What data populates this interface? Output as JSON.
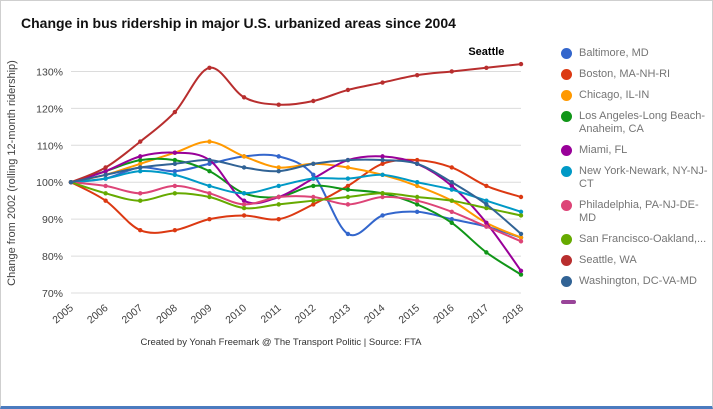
{
  "page": {
    "title": "Change in bus ridership in major U.S. urbanized areas since 2004",
    "footer": "Created by Yonah Freemark @ The Transport Politic | Source: FTA"
  },
  "chart_data": {
    "type": "line",
    "x": [
      2005,
      2006,
      2007,
      2008,
      2009,
      2010,
      2011,
      2012,
      2013,
      2014,
      2015,
      2016,
      2017,
      2018
    ],
    "ylabel": "Change from 2002 (rolling 12-month ridership)",
    "xlabel": "",
    "y_ticks": [
      "70%",
      "80%",
      "90%",
      "100%",
      "110%",
      "120%",
      "130%"
    ],
    "y_tick_values": [
      70,
      80,
      90,
      100,
      110,
      120,
      130
    ],
    "ylim": [
      70,
      135
    ],
    "grid": true,
    "legend_position": "right",
    "annotation": {
      "text": "Seattle",
      "x": 2017,
      "y": 134.5
    },
    "series": [
      {
        "name": "Baltimore, MD",
        "color": "#3366cc",
        "values": [
          100,
          101,
          104,
          103,
          105,
          107,
          107,
          102,
          86,
          91,
          92,
          90,
          88,
          85
        ]
      },
      {
        "name": "Boston, MA-NH-RI",
        "color": "#dc3912",
        "values": [
          100,
          95,
          87,
          87,
          90,
          91,
          90,
          94,
          99,
          105,
          106,
          104,
          99,
          96
        ]
      },
      {
        "name": "Chicago, IL-IN",
        "color": "#ff9900",
        "values": [
          100,
          102,
          105,
          108,
          111,
          107,
          104,
          105,
          104,
          102,
          99,
          95,
          89,
          85
        ]
      },
      {
        "name": "Los Angeles-Long Beach-Anaheim, CA",
        "color": "#109618",
        "values": [
          100,
          103,
          106,
          106,
          103,
          97,
          96,
          99,
          98,
          97,
          94,
          89,
          81,
          75
        ]
      },
      {
        "name": "Miami, FL",
        "color": "#990099",
        "values": [
          100,
          103,
          107,
          108,
          106,
          95,
          96,
          101,
          106,
          107,
          105,
          99,
          89,
          76
        ]
      },
      {
        "name": "New York-Newark, NY-NJ-CT",
        "color": "#0099c6",
        "values": [
          100,
          101,
          103,
          102,
          99,
          97,
          99,
          101,
          101,
          102,
          100,
          98,
          95,
          92
        ]
      },
      {
        "name": "Philadelphia, PA-NJ-DE-MD",
        "color": "#dd4477",
        "values": [
          100,
          99,
          97,
          99,
          97,
          94,
          96,
          96,
          94,
          96,
          95,
          92,
          88,
          84
        ]
      },
      {
        "name": "San Francisco-Oakland,...",
        "color": "#66aa00",
        "values": [
          100,
          97,
          95,
          97,
          96,
          93,
          94,
          95,
          96,
          97,
          96,
          95,
          93,
          91
        ]
      },
      {
        "name": "Seattle, WA",
        "color": "#b82e2e",
        "values": [
          100,
          104,
          111,
          119,
          131,
          123,
          121,
          122,
          125,
          127,
          129,
          130,
          131,
          132
        ]
      },
      {
        "name": "Washington, DC-VA-MD",
        "color": "#316395",
        "values": [
          100,
          102,
          104,
          105,
          106,
          104,
          103,
          105,
          106,
          106,
          105,
          100,
          94,
          86
        ]
      }
    ],
    "legend_extra": {
      "label": "",
      "color": "#994499",
      "style": "dash"
    }
  }
}
